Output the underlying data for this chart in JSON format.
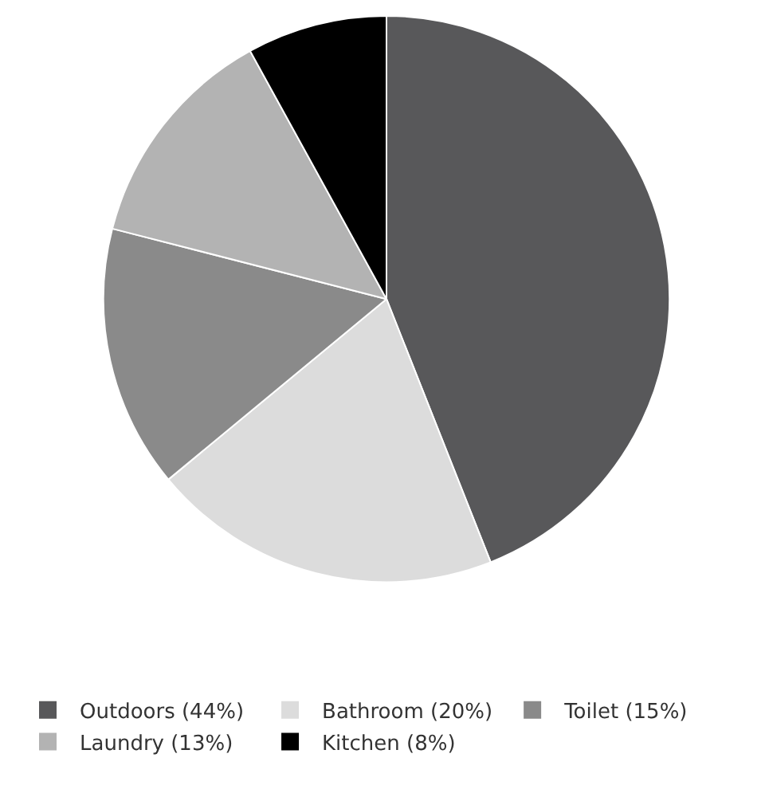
{
  "chart_data": {
    "type": "pie",
    "categories": [
      "Outdoors (44%)",
      "Bathroom (20%)",
      "Toilet (15%)",
      "Laundry (13%)",
      "Kitchen (8%)"
    ],
    "values": [
      44,
      20,
      15,
      13,
      8
    ],
    "colors": [
      "#58585a",
      "#dcdcdc",
      "#8a8a8a",
      "#b3b3b3",
      "#000000"
    ],
    "legend": "bottom"
  }
}
